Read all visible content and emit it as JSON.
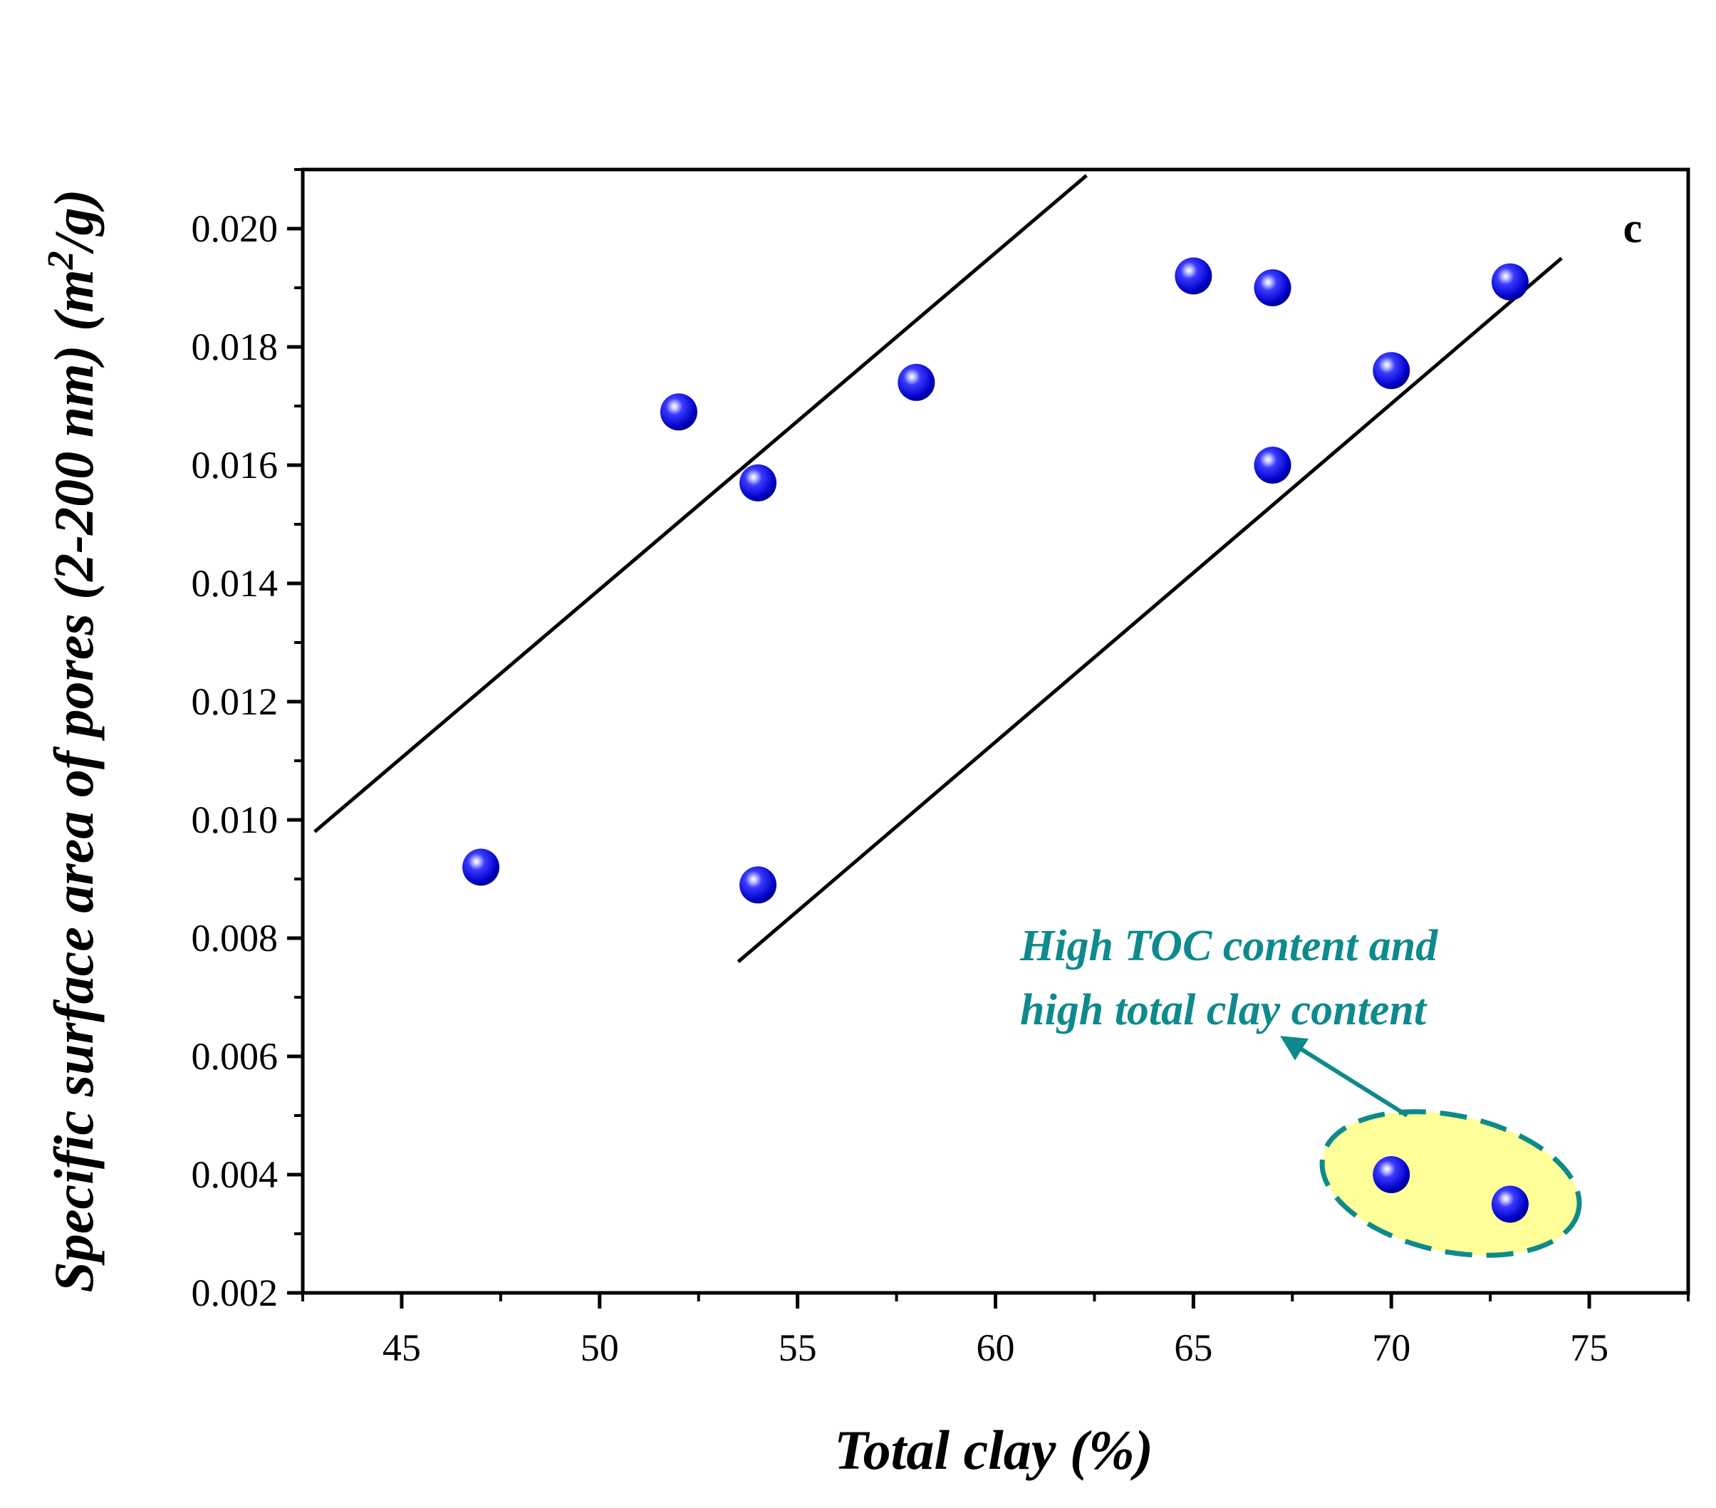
{
  "chart_data": {
    "type": "scatter",
    "panel_label": "c",
    "xlabel": "Total clay (%)",
    "ylabel_main": "Specific surface area of pores (2-200 nm) (m",
    "ylabel_sup": "2",
    "ylabel_end": "/g)",
    "xlim": [
      42.5,
      77.5
    ],
    "ylim": [
      0.002,
      0.021
    ],
    "x_ticks": [
      45,
      50,
      55,
      60,
      65,
      70,
      75
    ],
    "x_tick_labels": [
      "45",
      "50",
      "55",
      "60",
      "65",
      "70",
      "75"
    ],
    "y_ticks": [
      0.002,
      0.004,
      0.006,
      0.008,
      0.01,
      0.012,
      0.014,
      0.016,
      0.018,
      0.02
    ],
    "y_tick_labels": [
      "0.002",
      "0.004",
      "0.006",
      "0.008",
      "0.010",
      "0.012",
      "0.014",
      "0.016",
      "0.018",
      "0.020"
    ],
    "points": [
      {
        "x": 47,
        "y": 0.0092
      },
      {
        "x": 52,
        "y": 0.0169
      },
      {
        "x": 54,
        "y": 0.0157
      },
      {
        "x": 54,
        "y": 0.0089
      },
      {
        "x": 58,
        "y": 0.0174
      },
      {
        "x": 65,
        "y": 0.0192
      },
      {
        "x": 67,
        "y": 0.019
      },
      {
        "x": 67,
        "y": 0.016
      },
      {
        "x": 70,
        "y": 0.0176
      },
      {
        "x": 73,
        "y": 0.0191
      },
      {
        "x": 70,
        "y": 0.004
      },
      {
        "x": 73,
        "y": 0.0035
      }
    ],
    "trend_lines": [
      {
        "x": [
          42.8,
          62.3
        ],
        "y": [
          0.0098,
          0.0209
        ]
      },
      {
        "x": [
          53.5,
          74.3
        ],
        "y": [
          0.0076,
          0.0195
        ]
      }
    ],
    "annotation": {
      "lines": [
        "High TOC content and",
        "high total clay content"
      ],
      "color": "#0e8a8c",
      "highlight_fill": "#ffff99",
      "arrow_from": {
        "x": 70.4,
        "y": 0.005
      },
      "arrow_to": {
        "x": 67.3,
        "y": 0.0063
      },
      "ellipse_center": {
        "x": 71.5,
        "y": 0.00385
      },
      "ellipse_radii": {
        "x": 3.3,
        "y": 0.00115
      }
    },
    "marker_color": "#1010e0",
    "grid": false,
    "legend": "none"
  }
}
